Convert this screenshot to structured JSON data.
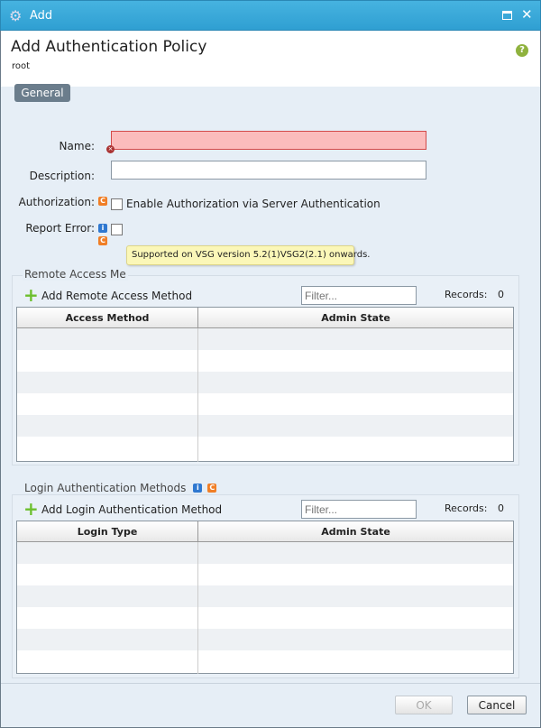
{
  "window": {
    "title": "Add",
    "icon": "gear-icon"
  },
  "header": {
    "title": "Add Authentication Policy",
    "subtitle": "root"
  },
  "tabs": [
    {
      "label": "General",
      "active": true
    }
  ],
  "form": {
    "name_label": "Name:",
    "name_value": "",
    "name_error": true,
    "description_label": "Description:",
    "description_value": "",
    "authorization_label": "Authorization:",
    "authorization_checkbox_label": "Enable Authorization via Server Authentication",
    "authorization_checked": false,
    "report_error_label": "Report Error:",
    "report_error_checked": false
  },
  "tooltip": "Supported on VSG version 5.2(1)VSG2(2.1) onwards.",
  "remote": {
    "legend": "Remote Access Me",
    "add_label": "Add Remote Access Method",
    "filter_placeholder": "Filter...",
    "records_label": "Records:",
    "records_count": "0",
    "columns": [
      "Access Method",
      "Admin State"
    ]
  },
  "login": {
    "legend": "Login Authentication Methods",
    "add_label": "Add Login Authentication Method",
    "filter_placeholder": "Filter...",
    "records_label": "Records:",
    "records_count": "0",
    "columns": [
      "Login Type",
      "Admin State"
    ]
  },
  "footer": {
    "ok_label": "OK",
    "cancel_label": "Cancel",
    "ok_disabled": true
  }
}
